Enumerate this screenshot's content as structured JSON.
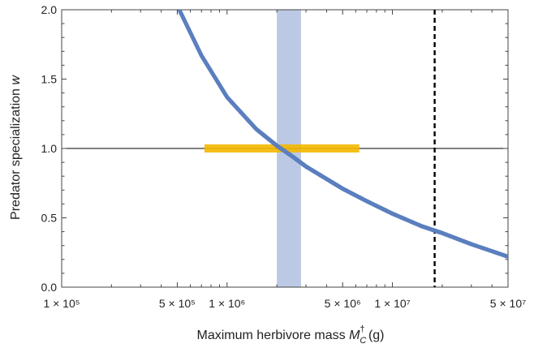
{
  "chart_data": {
    "type": "scatter",
    "title": "",
    "xlabel": {
      "main": "Maximum herbivore mass ",
      "symbol": "M",
      "sub": "C",
      "sup": "†",
      "unit": " (g)"
    },
    "ylabel": {
      "main": "Predator specialization ",
      "symbol": "w"
    },
    "x_scale": "log",
    "xlim": [
      100000,
      50000000
    ],
    "ylim": [
      0,
      2.0
    ],
    "x_ticks": [
      {
        "value": 100000,
        "label": "1 × 10⁵"
      },
      {
        "value": 500000,
        "label": "5 × 10⁵"
      },
      {
        "value": 1000000,
        "label": "1 × 10⁶"
      },
      {
        "value": 5000000,
        "label": "5 × 10⁶"
      },
      {
        "value": 10000000,
        "label": "1 × 10⁷"
      },
      {
        "value": 50000000,
        "label": "5 × 10⁷"
      }
    ],
    "y_ticks": [
      {
        "value": 0.0,
        "label": "0.0"
      },
      {
        "value": 0.5,
        "label": "0.5"
      },
      {
        "value": 1.0,
        "label": "1.0"
      },
      {
        "value": 1.5,
        "label": "1.5"
      },
      {
        "value": 2.0,
        "label": "2.0"
      }
    ],
    "series": [
      {
        "color": "#5b7fbf",
        "x": [
          500000,
          700000,
          1000000,
          1500000,
          2000000,
          2500000,
          3000000,
          4000000,
          5000000,
          7000000,
          10000000,
          15000000,
          20000000,
          30000000,
          50000000
        ],
        "y": [
          2.03,
          1.67,
          1.37,
          1.14,
          1.02,
          0.94,
          0.87,
          0.78,
          0.71,
          0.62,
          0.53,
          0.44,
          0.39,
          0.31,
          0.22
        ]
      }
    ],
    "reference_line": {
      "y": 1.0,
      "color": "#000000"
    },
    "horizontal_band": {
      "y": 1.0,
      "x_range": [
        730000,
        6300000
      ],
      "color": "#f5b800"
    },
    "vertical_band": {
      "x_range": [
        2000000,
        2800000
      ],
      "color": "#b7c6e3"
    },
    "vertical_dashed_line": {
      "x": 18000000,
      "color": "#000000"
    }
  }
}
